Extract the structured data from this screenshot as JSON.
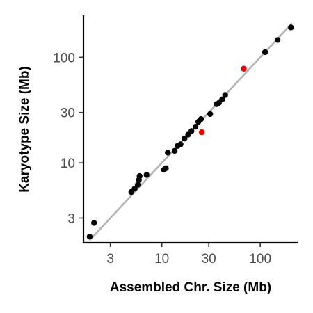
{
  "chart_data": {
    "type": "scatter",
    "title": "",
    "xlabel": "Assembled Chr. Size (Mb)",
    "ylabel": "Karyotype Size (Mb)",
    "x_scale": "log",
    "y_scale": "log",
    "xlim": [
      1.6,
      240
    ],
    "ylim": [
      1.75,
      250
    ],
    "x_ticks": [
      3,
      10,
      30,
      100
    ],
    "x_tick_labels": [
      "3",
      "10",
      "30",
      "100"
    ],
    "y_ticks": [
      3,
      10,
      30,
      100
    ],
    "y_tick_labels": [
      "3",
      "10",
      "30",
      "100"
    ],
    "grid": false,
    "legend": "none",
    "reference_line": {
      "slope": 1,
      "intercept": 0,
      "color": "#b3b3b3",
      "from": 1.85,
      "to": 210
    },
    "colors": {
      "default": "#000000",
      "highlight": "#ee0000"
    },
    "points": [
      {
        "x": 1.85,
        "y": 2.0,
        "highlight": false
      },
      {
        "x": 2.05,
        "y": 2.7,
        "highlight": false
      },
      {
        "x": 4.9,
        "y": 5.3,
        "highlight": false
      },
      {
        "x": 5.3,
        "y": 5.7,
        "highlight": false
      },
      {
        "x": 5.7,
        "y": 6.2,
        "highlight": false
      },
      {
        "x": 5.85,
        "y": 6.9,
        "highlight": false
      },
      {
        "x": 5.95,
        "y": 7.5,
        "highlight": false
      },
      {
        "x": 7.0,
        "y": 7.7,
        "highlight": false
      },
      {
        "x": 10.5,
        "y": 8.6,
        "highlight": false
      },
      {
        "x": 11.0,
        "y": 8.9,
        "highlight": false
      },
      {
        "x": 11.5,
        "y": 12.5,
        "highlight": false
      },
      {
        "x": 13.5,
        "y": 13.0,
        "highlight": false
      },
      {
        "x": 14.5,
        "y": 14.5,
        "highlight": false
      },
      {
        "x": 15.5,
        "y": 15.0,
        "highlight": false
      },
      {
        "x": 17.0,
        "y": 17.0,
        "highlight": false
      },
      {
        "x": 18.5,
        "y": 18.5,
        "highlight": false
      },
      {
        "x": 20.0,
        "y": 20.0,
        "highlight": false
      },
      {
        "x": 22.0,
        "y": 22.0,
        "highlight": false
      },
      {
        "x": 23.5,
        "y": 24.5,
        "highlight": false
      },
      {
        "x": 25.0,
        "y": 26.0,
        "highlight": false
      },
      {
        "x": 25.5,
        "y": 19.5,
        "highlight": true
      },
      {
        "x": 31.0,
        "y": 29.0,
        "highlight": false
      },
      {
        "x": 36.0,
        "y": 36.0,
        "highlight": false
      },
      {
        "x": 38.0,
        "y": 37.0,
        "highlight": false
      },
      {
        "x": 41.0,
        "y": 40.0,
        "highlight": false
      },
      {
        "x": 44.0,
        "y": 44.0,
        "highlight": false
      },
      {
        "x": 68.0,
        "y": 78.0,
        "highlight": true
      },
      {
        "x": 112.0,
        "y": 112.0,
        "highlight": false
      },
      {
        "x": 150.0,
        "y": 146.0,
        "highlight": false
      },
      {
        "x": 205.0,
        "y": 192.0,
        "highlight": false
      }
    ]
  }
}
